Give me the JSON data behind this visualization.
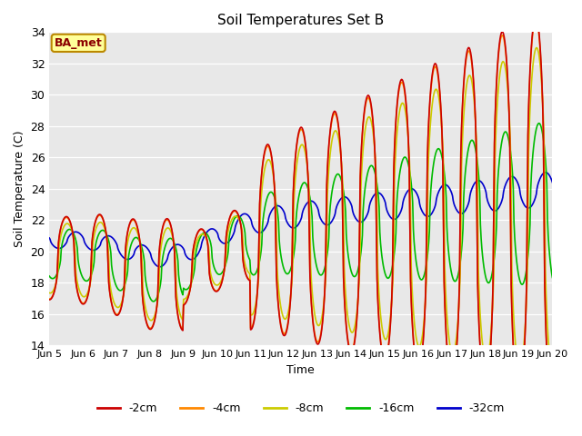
{
  "title": "Soil Temperatures Set B",
  "xlabel": "Time",
  "ylabel": "Soil Temperature (C)",
  "ylim": [
    14,
    34
  ],
  "yticks": [
    14,
    16,
    18,
    20,
    22,
    24,
    26,
    28,
    30,
    32,
    34
  ],
  "xtick_labels": [
    "Jun 5",
    "Jun 6",
    "Jun 7",
    "Jun 8",
    "Jun 9",
    "Jun 10",
    "Jun 11",
    "Jun 12",
    "Jun 13",
    "Jun 14",
    "Jun 15",
    "Jun 16",
    "Jun 17",
    "Jun 18",
    "Jun 19",
    "Jun 20"
  ],
  "legend_labels": [
    "-2cm",
    "-4cm",
    "-8cm",
    "-16cm",
    "-32cm"
  ],
  "legend_colors": [
    "#cc0000",
    "#ff8800",
    "#cccc00",
    "#00bb00",
    "#0000cc"
  ],
  "plot_bg_color": "#e8e8e8",
  "annotation_text": "BA_met",
  "annotation_bg": "#ffff99",
  "annotation_border": "#bb8800"
}
